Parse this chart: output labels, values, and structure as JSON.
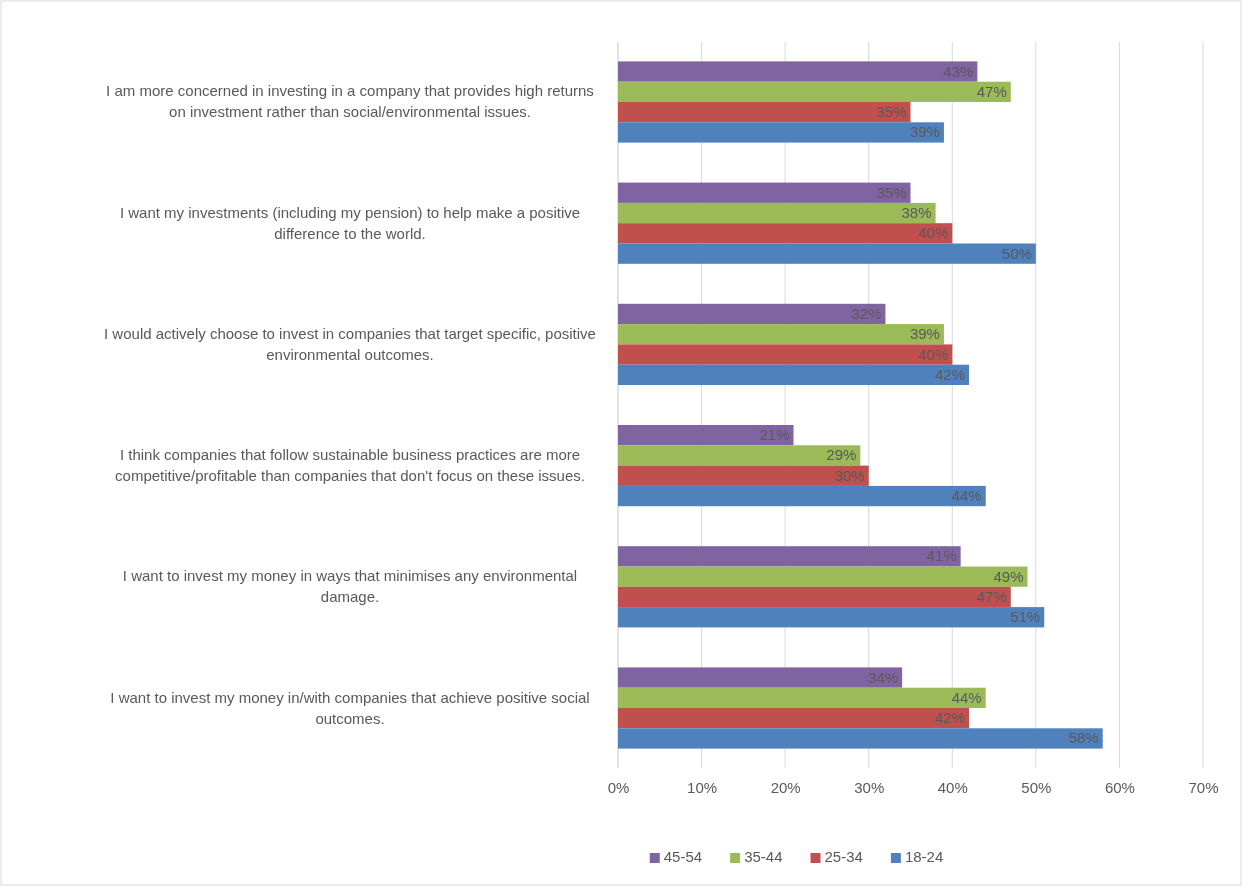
{
  "chart_data": {
    "type": "bar",
    "orientation": "horizontal",
    "categories": [
      "I am more concerned in investing in a company that provides high returns on investment rather than social/environmental issues.",
      "I want my investments (including my pension) to help make a positive difference to the world.",
      "I would actively choose to invest in companies that target specific, positive environmental outcomes.",
      "I think companies that follow sustainable business practices are more competitive/profitable than companies that don't focus on these issues.",
      "I want to invest my money in ways that minimises any environmental damage.",
      "I want to invest my money in/with companies that achieve positive social outcomes."
    ],
    "series": [
      {
        "name": "45-54",
        "color": "#8064a2",
        "values": [
          43,
          35,
          32,
          21,
          41,
          34
        ],
        "value_labels": [
          "43%",
          "35%",
          "32%",
          "21%",
          "41%",
          "34%"
        ]
      },
      {
        "name": "35-44",
        "color": "#9bbb59",
        "values": [
          47,
          38,
          39,
          29,
          49,
          44
        ],
        "value_labels": [
          "47%",
          "38%",
          "39%",
          "29%",
          "49%",
          "44%"
        ]
      },
      {
        "name": "25-34",
        "color": "#c0504d",
        "values": [
          35,
          40,
          40,
          30,
          47,
          42
        ],
        "value_labels": [
          "35%",
          "40%",
          "40%",
          "30%",
          "47%",
          "42%"
        ]
      },
      {
        "name": "18-24",
        "color": "#4f81bd",
        "values": [
          39,
          50,
          42,
          44,
          51,
          58
        ],
        "value_labels": [
          "39%",
          "50%",
          "42%",
          "44%",
          "51%",
          "58%"
        ]
      }
    ],
    "xlim": [
      0,
      70
    ],
    "xticks": [
      {
        "value": 0,
        "label": "0%"
      },
      {
        "value": 10,
        "label": "10%"
      },
      {
        "value": 20,
        "label": "20%"
      },
      {
        "value": 30,
        "label": "30%"
      },
      {
        "value": 40,
        "label": "40%"
      },
      {
        "value": 50,
        "label": "50%"
      },
      {
        "value": 60,
        "label": "60%"
      },
      {
        "value": 70,
        "label": "70%"
      }
    ],
    "grid": "x",
    "legend": "bottom"
  }
}
